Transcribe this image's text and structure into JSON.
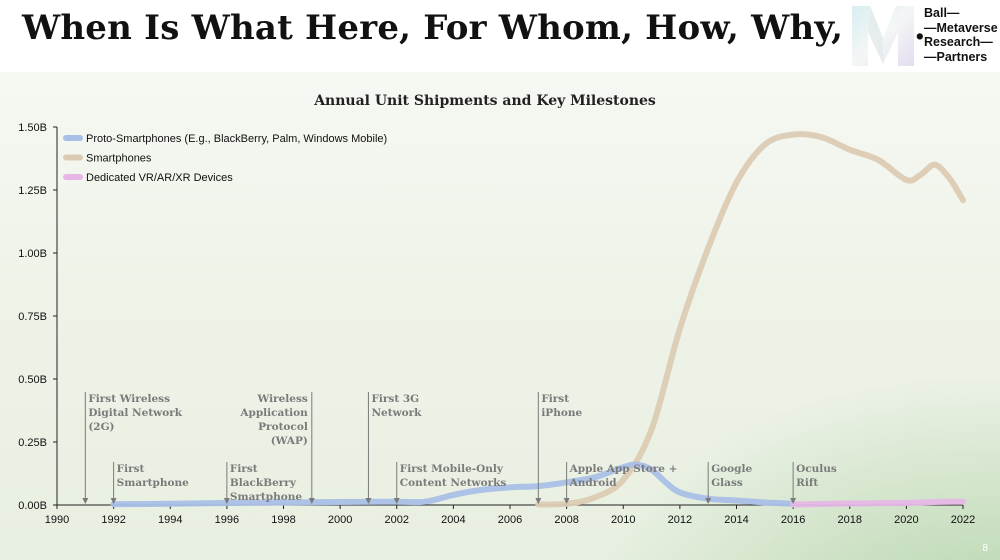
{
  "header": {
    "title": "When Is What Here, For Whom, How, Why, etc.",
    "logo_lines": [
      "Ball—",
      "—Metaverse",
      "Research—",
      "—Partners"
    ]
  },
  "page_number": "8",
  "colors": {
    "proto": "#a9bfe6",
    "smart": "#dccbb3",
    "vr": "#e6b7e6",
    "annotation": "#7a7a7a"
  },
  "chart_data": {
    "type": "line",
    "title": "Annual Unit Shipments and Key Milestones",
    "xlabel": "",
    "ylabel": "",
    "xlim": [
      1990,
      2022
    ],
    "ylim": [
      0,
      1.5
    ],
    "x_ticks": [
      1990,
      1992,
      1994,
      1996,
      1998,
      2000,
      2002,
      2004,
      2006,
      2008,
      2010,
      2012,
      2014,
      2016,
      2018,
      2020,
      2022
    ],
    "x_tick_labels": [
      "1990",
      "1992",
      "1994",
      "1996",
      "1998",
      "2000",
      "2002",
      "2004",
      "2006",
      "2008",
      "2010",
      "2012",
      "2014",
      "2016",
      "2018",
      "2020",
      "2022"
    ],
    "y_ticks": [
      0,
      0.25,
      0.5,
      0.75,
      1.0,
      1.25,
      1.5
    ],
    "y_tick_labels": [
      "0.00B",
      "0.25B",
      "0.50B",
      "0.75B",
      "1.00B",
      "1.25B",
      "1.50B"
    ],
    "legend_position": "top-left",
    "series": [
      {
        "name": "Proto-Smartphones (E.g., BlackBerry, Palm, Windows Mobile)",
        "color_key": "proto",
        "x": [
          1992,
          1994,
          1996,
          1998,
          2000,
          2002,
          2003,
          2004,
          2005,
          2006,
          2007,
          2008,
          2009,
          2010,
          2010.5,
          2011,
          2011.5,
          2012,
          2013,
          2014,
          2015,
          2016
        ],
        "y": [
          0.003,
          0.005,
          0.008,
          0.01,
          0.012,
          0.013,
          0.013,
          0.04,
          0.06,
          0.07,
          0.075,
          0.09,
          0.11,
          0.15,
          0.16,
          0.14,
          0.09,
          0.05,
          0.025,
          0.018,
          0.01,
          0.005
        ]
      },
      {
        "name": "Smartphones",
        "color_key": "smart",
        "x": [
          2007,
          2008,
          2009,
          2010,
          2011,
          2012,
          2013,
          2014,
          2015,
          2016,
          2017,
          2018,
          2019,
          2020,
          2020.5,
          2021,
          2021.5,
          2022
        ],
        "y": [
          0.002,
          0.005,
          0.03,
          0.1,
          0.3,
          0.7,
          1.02,
          1.28,
          1.43,
          1.47,
          1.46,
          1.41,
          1.37,
          1.29,
          1.31,
          1.35,
          1.3,
          1.21
        ]
      },
      {
        "name": "Dedicated VR/AR/XR Devices",
        "color_key": "vr",
        "x": [
          2016,
          2017,
          2018,
          2019,
          2020,
          2021,
          2022
        ],
        "y": [
          0.002,
          0.004,
          0.006,
          0.007,
          0.008,
          0.012,
          0.013
        ]
      }
    ],
    "milestones": [
      {
        "year": 1991,
        "lines": [
          "First Wireless",
          "Digital Network",
          "(2G)"
        ],
        "align": "start",
        "level": "high"
      },
      {
        "year": 1992,
        "lines": [
          "First",
          "Smartphone"
        ],
        "align": "start",
        "level": "low"
      },
      {
        "year": 1996,
        "lines": [
          "First",
          "BlackBerry",
          "Smartphone"
        ],
        "align": "start",
        "level": "low"
      },
      {
        "year": 1999,
        "lines": [
          "Wireless",
          "Application",
          "Protocol",
          "(WAP)"
        ],
        "align": "end",
        "level": "high"
      },
      {
        "year": 2001,
        "lines": [
          "First 3G",
          "Network"
        ],
        "align": "start",
        "level": "high"
      },
      {
        "year": 2002,
        "lines": [
          "First Mobile-Only",
          "Content Networks"
        ],
        "align": "start",
        "level": "low"
      },
      {
        "year": 2007,
        "lines": [
          "First",
          "iPhone"
        ],
        "align": "start",
        "level": "high"
      },
      {
        "year": 2008,
        "lines": [
          "Apple App Store +",
          "Android"
        ],
        "align": "start",
        "level": "low"
      },
      {
        "year": 2013,
        "lines": [
          "Google",
          "Glass"
        ],
        "align": "start",
        "level": "low"
      },
      {
        "year": 2016,
        "lines": [
          "Oculus",
          "Rift"
        ],
        "align": "start",
        "level": "low"
      }
    ]
  }
}
